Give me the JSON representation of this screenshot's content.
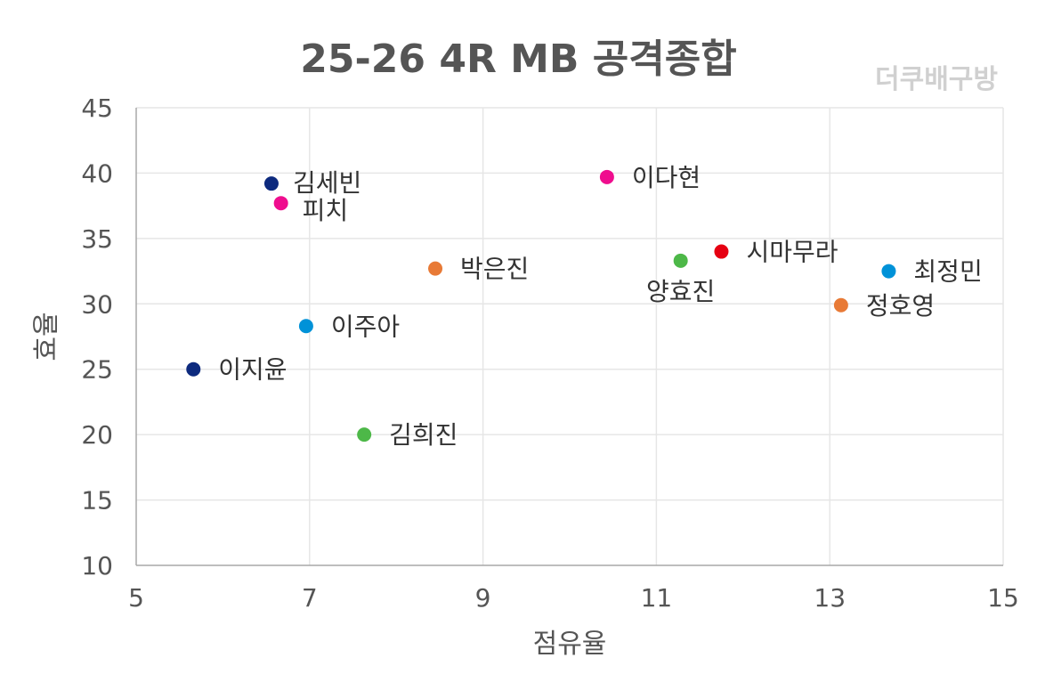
{
  "chart_data": {
    "type": "scatter",
    "title": "25-26  4R MB 공격종합",
    "watermark": "더쿠배구방",
    "xlabel": "점유율",
    "ylabel": "효율",
    "xlim": [
      5,
      15
    ],
    "ylim": [
      10,
      45
    ],
    "xticks": [
      5,
      7,
      9,
      11,
      13,
      15
    ],
    "yticks": [
      10,
      15,
      20,
      25,
      30,
      35,
      40,
      45
    ],
    "grid": true,
    "points": [
      {
        "name": "김세빈",
        "x": 6.56,
        "y": 39.2,
        "color": "#0d2a7e"
      },
      {
        "name": "피치",
        "x": 6.67,
        "y": 37.7,
        "color": "#ef0d8e"
      },
      {
        "name": "이다현",
        "x": 10.43,
        "y": 39.7,
        "color": "#ef0d8e"
      },
      {
        "name": "시마무라",
        "x": 11.75,
        "y": 34.0,
        "color": "#e60012"
      },
      {
        "name": "양효진",
        "x": 11.28,
        "y": 33.3,
        "color": "#4db848"
      },
      {
        "name": "최정민",
        "x": 13.68,
        "y": 32.5,
        "color": "#0092d8"
      },
      {
        "name": "박은진",
        "x": 8.45,
        "y": 32.7,
        "color": "#e87a36"
      },
      {
        "name": "정호영",
        "x": 13.13,
        "y": 29.9,
        "color": "#e87a36"
      },
      {
        "name": "이주아",
        "x": 6.96,
        "y": 28.3,
        "color": "#0092d8"
      },
      {
        "name": "이지윤",
        "x": 5.66,
        "y": 25.0,
        "color": "#0d2a7e"
      },
      {
        "name": "김희진",
        "x": 7.63,
        "y": 20.0,
        "color": "#4db848"
      }
    ]
  }
}
